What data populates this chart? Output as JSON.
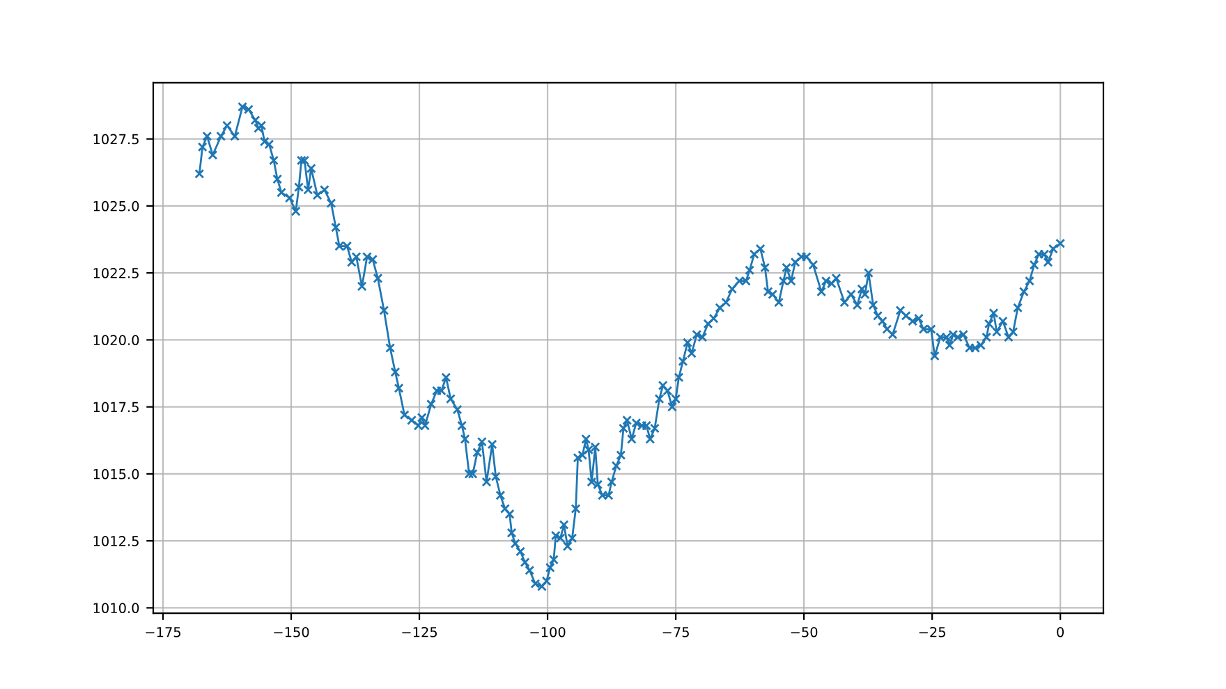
{
  "chart_data": {
    "type": "line",
    "marker": "cross",
    "line_style": "solid",
    "grid": true,
    "xlim": [
      -176.9,
      8.4
    ],
    "ylim": [
      1009.8,
      1029.6
    ],
    "xticks": [
      {
        "value": -175,
        "label": "−175"
      },
      {
        "value": -150,
        "label": "−150"
      },
      {
        "value": -125,
        "label": "−125"
      },
      {
        "value": -100,
        "label": "−100"
      },
      {
        "value": -75,
        "label": "−75"
      },
      {
        "value": -50,
        "label": "−50"
      },
      {
        "value": -25,
        "label": "−25"
      },
      0
    ],
    "yticks": [
      {
        "value": 1010,
        "label": "1010.0"
      },
      1012.5,
      {
        "value": 1015,
        "label": "1015.0"
      },
      1017.5,
      {
        "value": 1020,
        "label": "1020.0"
      },
      1022.5,
      {
        "value": 1025,
        "label": "1025.0"
      },
      1027.5
    ],
    "series": [
      {
        "color": "#1f77b4",
        "x": [
          -167.9,
          -167.3,
          -166.4,
          -165.3,
          -163.7,
          -162.5,
          -161.0,
          -159.5,
          -158.3,
          -157.0,
          -156.4,
          -155.8,
          -155.2,
          -154.3,
          -153.4,
          -152.7,
          -151.9,
          -150.3,
          -149.1,
          -148.5,
          -148.0,
          -147.4,
          -146.7,
          -146.1,
          -144.9,
          -143.5,
          -142.2,
          -141.3,
          -140.6,
          -139.1,
          -138.2,
          -137.3,
          -136.2,
          -135.2,
          -134.1,
          -133.1,
          -131.9,
          -130.7,
          -129.7,
          -129.0,
          -127.9,
          -126.5,
          -125.2,
          -124.5,
          -123.9,
          -122.7,
          -121.6,
          -120.7,
          -119.8,
          -118.9,
          -117.6,
          -116.7,
          -116.1,
          -115.3,
          -114.6,
          -113.7,
          -112.8,
          -111.9,
          -110.8,
          -110.1,
          -109.2,
          -108.3,
          -107.4,
          -107.0,
          -106.3,
          -105.3,
          -104.4,
          -103.5,
          -102.4,
          -101.1,
          -100.2,
          -99.5,
          -98.8,
          -98.4,
          -97.5,
          -96.8,
          -96.1,
          -95.2,
          -94.5,
          -94.1,
          -93.2,
          -92.5,
          -92.0,
          -91.4,
          -90.7,
          -90.2,
          -89.3,
          -88.1,
          -87.5,
          -86.6,
          -85.7,
          -85.2,
          -84.5,
          -83.6,
          -82.7,
          -81.6,
          -80.7,
          -80.0,
          -79.1,
          -78.2,
          -77.5,
          -76.6,
          -75.7,
          -75.0,
          -74.4,
          -73.6,
          -72.7,
          -71.9,
          -70.9,
          -69.8,
          -68.7,
          -67.6,
          -66.4,
          -65.2,
          -64.0,
          -62.6,
          -61.3,
          -60.6,
          -59.7,
          -58.5,
          -57.6,
          -57.0,
          -56.1,
          -54.9,
          -54.0,
          -53.4,
          -52.5,
          -51.7,
          -50.5,
          -49.5,
          -48.2,
          -46.6,
          -45.7,
          -44.6,
          -43.7,
          -42.1,
          -40.8,
          -39.6,
          -38.7,
          -38.1,
          -37.4,
          -36.5,
          -35.6,
          -34.7,
          -33.8,
          -32.7,
          -31.2,
          -30.1,
          -28.8,
          -27.6,
          -26.7,
          -25.2,
          -24.5,
          -23.4,
          -22.2,
          -21.6,
          -20.9,
          -20.0,
          -18.9,
          -17.7,
          -16.6,
          -15.5,
          -14.4,
          -13.9,
          -13.0,
          -12.4,
          -11.2,
          -10.1,
          -9.2,
          -8.3,
          -7.1,
          -6.0,
          -5.1,
          -4.2,
          -3.1,
          -2.4,
          -1.4,
          0.0
        ],
        "values": [
          1026.2,
          1027.2,
          1027.6,
          1026.9,
          1027.6,
          1028.0,
          1027.6,
          1028.7,
          1028.6,
          1028.2,
          1027.9,
          1028.0,
          1027.4,
          1027.3,
          1026.7,
          1026.0,
          1025.5,
          1025.3,
          1024.8,
          1025.7,
          1026.7,
          1026.7,
          1025.6,
          1026.4,
          1025.4,
          1025.6,
          1025.1,
          1024.2,
          1023.5,
          1023.5,
          1022.9,
          1023.1,
          1022.0,
          1023.1,
          1023.0,
          1022.3,
          1021.1,
          1019.7,
          1018.8,
          1018.2,
          1017.2,
          1017.0,
          1016.8,
          1017.1,
          1016.8,
          1017.6,
          1018.1,
          1018.1,
          1018.6,
          1017.8,
          1017.4,
          1016.8,
          1016.3,
          1015.0,
          1015.0,
          1015.8,
          1016.2,
          1014.7,
          1016.1,
          1014.9,
          1014.2,
          1013.7,
          1013.5,
          1012.8,
          1012.4,
          1012.1,
          1011.7,
          1011.4,
          1010.9,
          1010.8,
          1011.0,
          1011.5,
          1011.8,
          1012.7,
          1012.6,
          1013.1,
          1012.3,
          1012.6,
          1013.7,
          1015.6,
          1015.7,
          1016.3,
          1015.9,
          1014.7,
          1016.0,
          1014.6,
          1014.2,
          1014.2,
          1014.7,
          1015.3,
          1015.7,
          1016.7,
          1017.0,
          1016.3,
          1016.9,
          1016.8,
          1016.8,
          1016.3,
          1016.7,
          1017.8,
          1018.3,
          1018.1,
          1017.5,
          1017.8,
          1018.6,
          1019.2,
          1019.9,
          1019.5,
          1020.2,
          1020.1,
          1020.6,
          1020.8,
          1021.2,
          1021.4,
          1021.9,
          1022.2,
          1022.2,
          1022.6,
          1023.2,
          1023.4,
          1022.7,
          1021.8,
          1021.7,
          1021.4,
          1022.2,
          1022.7,
          1022.2,
          1022.9,
          1023.1,
          1023.1,
          1022.8,
          1021.8,
          1022.2,
          1022.1,
          1022.3,
          1021.4,
          1021.7,
          1021.3,
          1021.9,
          1021.7,
          1022.5,
          1021.3,
          1020.9,
          1020.7,
          1020.4,
          1020.2,
          1021.1,
          1020.9,
          1020.7,
          1020.8,
          1020.4,
          1020.4,
          1019.4,
          1020.1,
          1020.1,
          1019.8,
          1020.2,
          1020.1,
          1020.2,
          1019.7,
          1019.7,
          1019.8,
          1020.1,
          1020.6,
          1021.0,
          1020.3,
          1020.7,
          1020.1,
          1020.3,
          1021.2,
          1021.8,
          1022.2,
          1022.8,
          1023.2,
          1023.2,
          1022.9,
          1023.4,
          1023.6
        ]
      }
    ]
  }
}
